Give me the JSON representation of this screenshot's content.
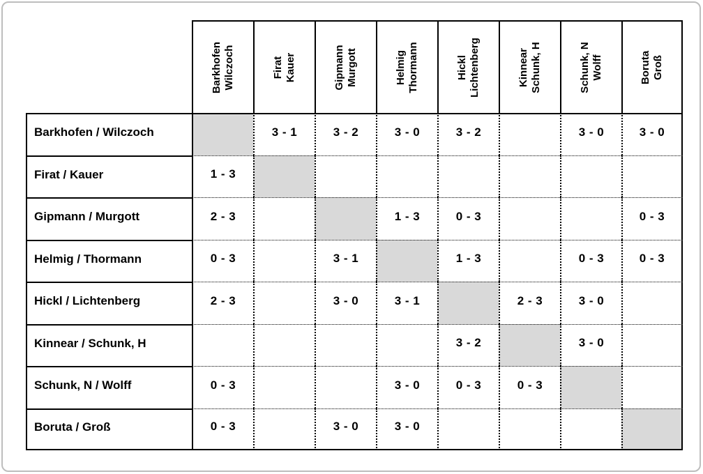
{
  "page": {
    "frame_border_color": "#bdbdbd",
    "background": "#ffffff"
  },
  "table": {
    "kind": "results-crosstable",
    "grid_border_color": "#000000",
    "diagonal_fill": "#d9d9d9",
    "columns": [
      {
        "line1": "Barkhofen",
        "line2": "Wilczoch"
      },
      {
        "line1": "Firat",
        "line2": "Kauer"
      },
      {
        "line1": "Gipmann",
        "line2": "Murgott"
      },
      {
        "line1": "Helmig",
        "line2": "Thormann"
      },
      {
        "line1": "Hickl",
        "line2": "Lichtenberg"
      },
      {
        "line1": "Kinnear",
        "line2": "Schunk, H"
      },
      {
        "line1": "Schunk, N",
        "line2": "Wolff"
      },
      {
        "line1": "Boruta",
        "line2": "Groß"
      }
    ],
    "rows": [
      {
        "label": "Barkhofen / Wilczoch",
        "cells": [
          "",
          "3 - 1",
          "3 - 2",
          "3 - 0",
          "3 - 2",
          "",
          "3 - 0",
          "3 - 0"
        ]
      },
      {
        "label": "Firat / Kauer",
        "cells": [
          "1 - 3",
          "",
          "",
          "",
          "",
          "",
          "",
          ""
        ]
      },
      {
        "label": "Gipmann / Murgott",
        "cells": [
          "2 - 3",
          "",
          "",
          "1 - 3",
          "0 - 3",
          "",
          "",
          "0 - 3"
        ]
      },
      {
        "label": "Helmig / Thormann",
        "cells": [
          "0 - 3",
          "",
          "3 - 1",
          "",
          "1 - 3",
          "",
          "0 - 3",
          "0 - 3"
        ]
      },
      {
        "label": "Hickl / Lichtenberg",
        "cells": [
          "2 - 3",
          "",
          "3 - 0",
          "3 - 1",
          "",
          "2 - 3",
          "3 - 0",
          ""
        ]
      },
      {
        "label": "Kinnear / Schunk, H",
        "cells": [
          "",
          "",
          "",
          "",
          "3 - 2",
          "",
          "3 - 0",
          ""
        ]
      },
      {
        "label": "Schunk, N / Wolff",
        "cells": [
          "0 - 3",
          "",
          "",
          "3 - 0",
          "0 - 3",
          "0 - 3",
          "",
          ""
        ]
      },
      {
        "label": "Boruta / Groß",
        "cells": [
          "0 - 3",
          "",
          "3 - 0",
          "3 - 0",
          "",
          "",
          "",
          ""
        ]
      }
    ]
  }
}
